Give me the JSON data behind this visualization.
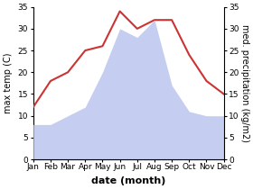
{
  "months": [
    "Jan",
    "Feb",
    "Mar",
    "Apr",
    "May",
    "Jun",
    "Jul",
    "Aug",
    "Sep",
    "Oct",
    "Nov",
    "Dec"
  ],
  "temperature": [
    12,
    18,
    20,
    25,
    26,
    34,
    30,
    32,
    32,
    24,
    18,
    15
  ],
  "precipitation": [
    8,
    8,
    10,
    12,
    20,
    30,
    28,
    32,
    17,
    11,
    10,
    10
  ],
  "temp_color": "#cc3333",
  "precip_color": "#c5cef0",
  "background_color": "#ffffff",
  "ylim_left": [
    0,
    35
  ],
  "ylim_right": [
    0,
    35
  ],
  "ylabel_left": "max temp (C)",
  "ylabel_right": "med. precipitation (kg/m2)",
  "xlabel": "date (month)",
  "temp_linewidth": 1.5,
  "xlabel_fontsize": 8,
  "ylabel_fontsize": 7,
  "tick_fontsize": 6.5,
  "yticks": [
    0,
    5,
    10,
    15,
    20,
    25,
    30,
    35
  ]
}
